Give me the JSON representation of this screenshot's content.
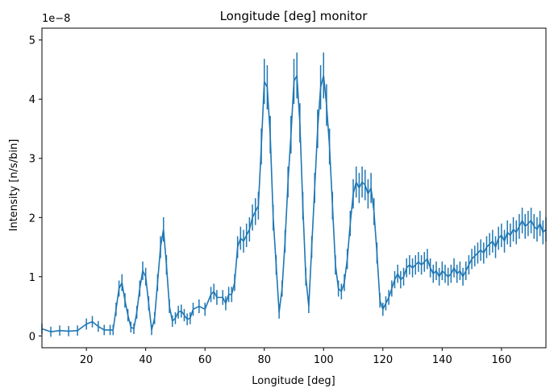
{
  "chart_data": {
    "type": "line",
    "title": "Longitude [deg] monitor",
    "xlabel": "Longitude [deg]",
    "ylabel": "Intensity [n/s/bin]",
    "offset_text": "1e−8",
    "xlim": [
      5,
      175
    ],
    "ylim": [
      -0.2,
      5.2
    ],
    "xticks": [
      20,
      40,
      60,
      80,
      100,
      120,
      140,
      160
    ],
    "yticks": [
      0,
      1,
      2,
      3,
      4,
      5
    ],
    "grid": false,
    "color": "#1f77b4",
    "series": [
      {
        "x": [
          5,
          8,
          11,
          14,
          17,
          20,
          22,
          24,
          26,
          28,
          29,
          30,
          31,
          32,
          33,
          34,
          35,
          36,
          37,
          38,
          39,
          40,
          41,
          42,
          43,
          44,
          45,
          46,
          47,
          48,
          49,
          50,
          51,
          52,
          53,
          54,
          55,
          56,
          58,
          60,
          62,
          63,
          64,
          66,
          67,
          68,
          69,
          70,
          71,
          72,
          73,
          74,
          75,
          76,
          77,
          78,
          79,
          80,
          81,
          82,
          83,
          84,
          85,
          86,
          87,
          88,
          89,
          90,
          91,
          92,
          93,
          94,
          95,
          96,
          97,
          98,
          99,
          100,
          101,
          102,
          103,
          104,
          105,
          106,
          107,
          108,
          109,
          110,
          111,
          112,
          113,
          114,
          115,
          116,
          117,
          118,
          119,
          120,
          121,
          122,
          123,
          124,
          125,
          126,
          127,
          128,
          129,
          130,
          131,
          132,
          133,
          134,
          135,
          136,
          137,
          138,
          139,
          140,
          141,
          142,
          143,
          144,
          145,
          146,
          147,
          148,
          149,
          150,
          151,
          152,
          153,
          154,
          155,
          156,
          157,
          158,
          159,
          160,
          161,
          162,
          163,
          164,
          165,
          166,
          167,
          168,
          169,
          170,
          171,
          172,
          173,
          174,
          175
        ],
        "y": [
          0.12,
          0.07,
          0.09,
          0.08,
          0.09,
          0.2,
          0.24,
          0.16,
          0.1,
          0.1,
          0.1,
          0.45,
          0.8,
          0.9,
          0.6,
          0.35,
          0.15,
          0.12,
          0.4,
          0.8,
          1.1,
          1.0,
          0.55,
          0.1,
          0.3,
          0.9,
          1.5,
          1.8,
          1.2,
          0.5,
          0.25,
          0.3,
          0.4,
          0.42,
          0.35,
          0.28,
          0.3,
          0.45,
          0.5,
          0.45,
          0.7,
          0.75,
          0.65,
          0.65,
          0.55,
          0.7,
          0.7,
          0.9,
          1.5,
          1.65,
          1.6,
          1.7,
          1.8,
          2.0,
          2.1,
          2.2,
          3.2,
          4.3,
          4.2,
          3.4,
          2.0,
          1.2,
          0.4,
          0.8,
          1.6,
          2.6,
          3.4,
          4.3,
          4.4,
          3.6,
          2.2,
          1.0,
          0.5,
          1.5,
          2.5,
          3.5,
          4.2,
          4.4,
          3.9,
          3.2,
          2.2,
          1.2,
          0.8,
          0.75,
          0.9,
          1.3,
          1.9,
          2.4,
          2.6,
          2.5,
          2.6,
          2.55,
          2.4,
          2.5,
          2.1,
          1.4,
          0.6,
          0.45,
          0.55,
          0.65,
          0.8,
          0.95,
          1.05,
          0.95,
          1.0,
          1.15,
          1.2,
          1.15,
          1.2,
          1.25,
          1.2,
          1.25,
          1.3,
          1.15,
          1.05,
          1.1,
          1.0,
          1.1,
          1.05,
          1.0,
          1.05,
          1.15,
          1.05,
          1.1,
          1.0,
          1.1,
          1.2,
          1.3,
          1.35,
          1.4,
          1.45,
          1.4,
          1.5,
          1.55,
          1.6,
          1.5,
          1.65,
          1.7,
          1.6,
          1.75,
          1.7,
          1.8,
          1.75,
          1.85,
          1.95,
          1.85,
          1.9,
          1.95,
          1.85,
          1.8,
          1.9,
          1.75,
          1.8
        ]
      }
    ]
  }
}
